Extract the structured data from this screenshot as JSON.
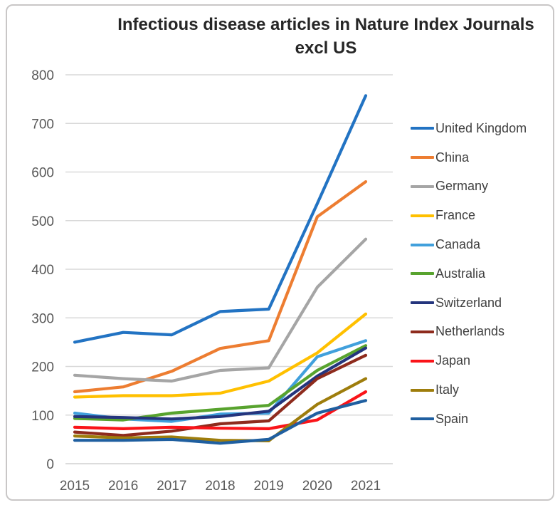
{
  "chart_data": {
    "type": "line",
    "title": "Infectious disease articles in Nature Index Journals excl US",
    "title_lines": [
      "Infectious disease articles in Nature Index Journals",
      "excl US"
    ],
    "x": [
      "2015",
      "2016",
      "2017",
      "2018",
      "2019",
      "2020",
      "2021"
    ],
    "xlabel": "",
    "ylabel": "",
    "ylim": [
      0,
      800
    ],
    "y_ticks": [
      0,
      100,
      200,
      300,
      400,
      500,
      600,
      700,
      800
    ],
    "grid": "horizontal",
    "legend_position": "right",
    "series": [
      {
        "name": "United Kingdom",
        "color": "#2273C3",
        "values": [
          250,
          270,
          265,
          313,
          318,
          535,
          757
        ]
      },
      {
        "name": "China",
        "color": "#ED7D31",
        "values": [
          148,
          158,
          190,
          237,
          253,
          508,
          580
        ]
      },
      {
        "name": "Germany",
        "color": "#A5A5A5",
        "values": [
          182,
          175,
          170,
          192,
          197,
          363,
          462
        ]
      },
      {
        "name": "France",
        "color": "#FFC000",
        "values": [
          137,
          140,
          140,
          145,
          170,
          228,
          308
        ]
      },
      {
        "name": "Canada",
        "color": "#41A0DC",
        "values": [
          104,
          92,
          87,
          102,
          104,
          220,
          253
        ]
      },
      {
        "name": "Australia",
        "color": "#58A32E",
        "values": [
          93,
          90,
          104,
          112,
          120,
          192,
          243
        ]
      },
      {
        "name": "Switzerland",
        "color": "#24357D",
        "values": [
          97,
          95,
          92,
          97,
          108,
          180,
          238
        ]
      },
      {
        "name": "Netherlands",
        "color": "#8E2B1D",
        "values": [
          65,
          58,
          67,
          82,
          88,
          175,
          223
        ]
      },
      {
        "name": "Japan",
        "color": "#FA1419",
        "values": [
          75,
          72,
          75,
          73,
          72,
          90,
          148
        ]
      },
      {
        "name": "Italy",
        "color": "#9E7D0C",
        "values": [
          57,
          53,
          55,
          48,
          47,
          122,
          175
        ]
      },
      {
        "name": "Spain",
        "color": "#1F5FA0",
        "values": [
          48,
          48,
          50,
          42,
          50,
          104,
          130
        ]
      }
    ]
  },
  "style": {
    "grid_color": "#D9D9D9",
    "axis_line_color": "#D0D0D0",
    "tick_text_color": "#595959",
    "title_color": "#262626",
    "legend_text_color": "#404040",
    "frame_border_color": "#C9C7C7",
    "background": "#FFFFFF"
  }
}
